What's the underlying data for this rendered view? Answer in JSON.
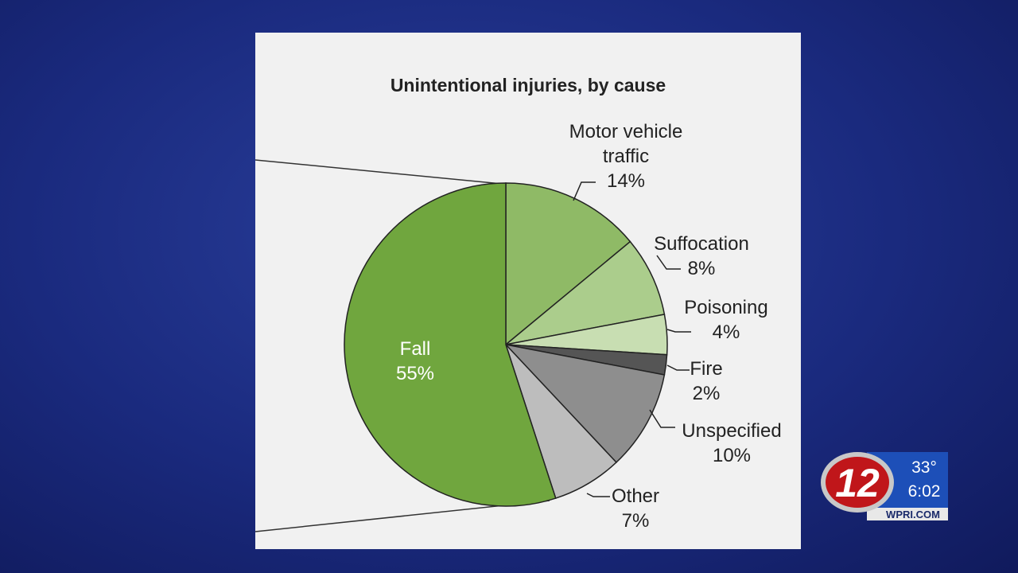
{
  "chart_data": {
    "type": "pie",
    "title": "Unintentional injuries, by cause",
    "categories": [
      "Motor vehicle traffic",
      "Suffocation",
      "Poisoning",
      "Fire",
      "Unspecified",
      "Other",
      "Fall"
    ],
    "values": [
      14,
      8,
      4,
      2,
      10,
      7,
      55
    ],
    "value_labels": [
      "14%",
      "8%",
      "4%",
      "2%",
      "10%",
      "7%",
      "55%"
    ],
    "colors": [
      "#8fba66",
      "#abcd8c",
      "#c8deb2",
      "#555555",
      "#8e8e8e",
      "#bdbdbd",
      "#70a63e"
    ]
  },
  "overlay": {
    "logo": "12",
    "temperature": "33°",
    "time": "6:02",
    "website": "WPRI.COM"
  }
}
